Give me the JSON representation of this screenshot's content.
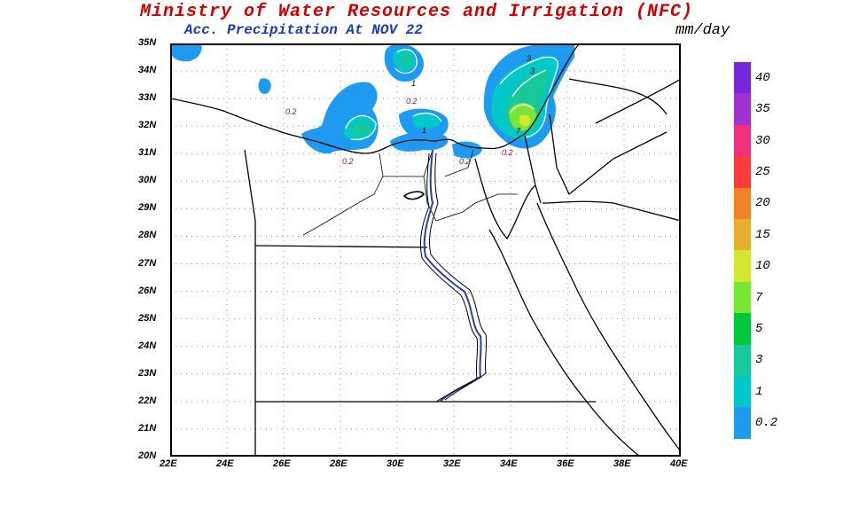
{
  "header": {
    "title": "Ministry of Water Resources and Irrigation (NFC)",
    "subtitle": "Acc. Precipitation  At NOV 22",
    "unit": "mm/day"
  },
  "map": {
    "lat_labels": [
      "35N",
      "34N",
      "33N",
      "32N",
      "31N",
      "30N",
      "29N",
      "28N",
      "27N",
      "26N",
      "25N",
      "24N",
      "23N",
      "22N",
      "21N",
      "20N"
    ],
    "lon_labels": [
      "22E",
      "24E",
      "26E",
      "28E",
      "30E",
      "32E",
      "34E",
      "36E",
      "38E",
      "40E"
    ],
    "lat_range": [
      20,
      35
    ],
    "lon_range": [
      22,
      40
    ],
    "contour_labels": [
      "0.2",
      "0.2",
      "0.2",
      "0.2",
      "0.2",
      "1",
      "1",
      "3",
      "3",
      "7"
    ]
  },
  "legend": {
    "levels": [
      "0.2",
      "1",
      "3",
      "5",
      "7",
      "10",
      "15",
      "20",
      "25",
      "30",
      "35",
      "40"
    ],
    "colors": [
      "#1e9bf0",
      "#00c8c8",
      "#17c89a",
      "#00c83c",
      "#78e632",
      "#d2e632",
      "#e6af2d",
      "#f08228",
      "#fa3c3c",
      "#f0327d",
      "#a032d2",
      "#7828dc"
    ]
  }
}
